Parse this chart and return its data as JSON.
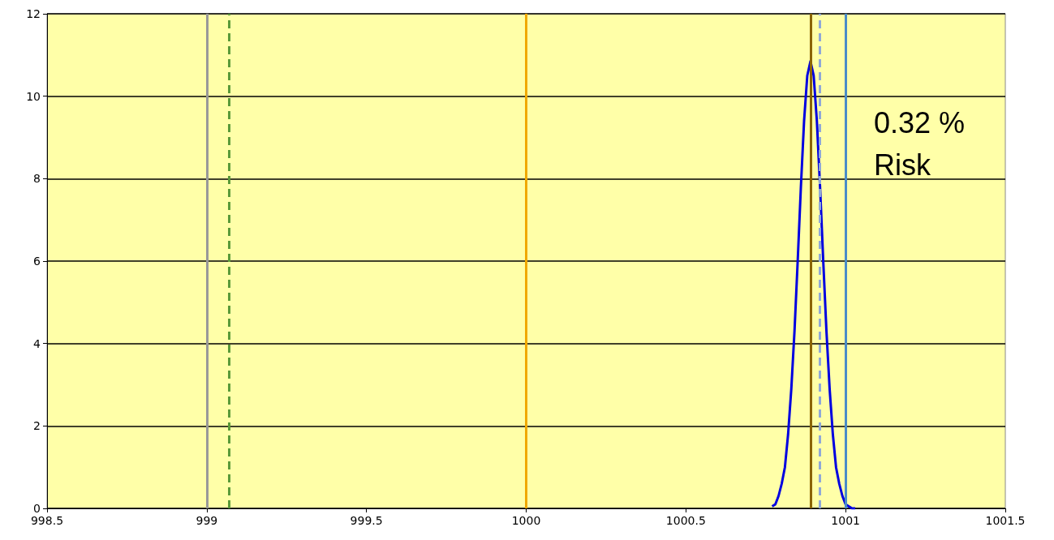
{
  "chart_data": {
    "type": "line",
    "x": [
      1000.77,
      1000.78,
      1000.79,
      1000.8,
      1000.81,
      1000.82,
      1000.83,
      1000.84,
      1000.85,
      1000.86,
      1000.87,
      1000.88,
      1000.89,
      1000.9,
      1000.91,
      1000.92,
      1000.93,
      1000.94,
      1000.95,
      1000.96,
      1000.97,
      1000.98,
      1000.99,
      1001,
      1001.01,
      1001.02,
      1001.03
    ],
    "series": [
      {
        "color": "#0000e0",
        "values": [
          0.05,
          0.1,
          0.3,
          0.6,
          1,
          1.8,
          2.9,
          4.3,
          6,
          7.8,
          9.4,
          10.5,
          10.85,
          10.5,
          9.4,
          7.8,
          6,
          4.3,
          2.9,
          1.8,
          1,
          0.6,
          0.3,
          0.1,
          0.05,
          0,
          0
        ]
      }
    ],
    "xlim": [
      998.5,
      1001.5
    ],
    "xticks": [
      998.5,
      999,
      999.5,
      1000,
      1000.5,
      1001,
      1001.5
    ],
    "ylim": [
      0,
      12
    ],
    "yticks": [
      0,
      2,
      4,
      6,
      8,
      10,
      12
    ],
    "grid": "y",
    "marker": "none",
    "line_style": "solid",
    "ref_lines": [
      {
        "axis": "x",
        "value": 999,
        "color": "#999999",
        "line_style": "solid"
      },
      {
        "axis": "x",
        "value": 999.07,
        "color": "#5a9a3a",
        "line_style": "dashed"
      },
      {
        "axis": "x",
        "value": 1000,
        "color": "#f0a800",
        "line_style": "solid"
      },
      {
        "axis": "x",
        "value": 1000.89,
        "color": "#8b6400",
        "line_style": "solid"
      },
      {
        "axis": "x",
        "value": 1000.92,
        "color": "#8fa8d8",
        "line_style": "dashed"
      },
      {
        "axis": "x",
        "value": 1001,
        "color": "#4a8cc8",
        "line_style": "solid"
      }
    ],
    "annotations": [
      "0.32 %\nRisk"
    ]
  }
}
